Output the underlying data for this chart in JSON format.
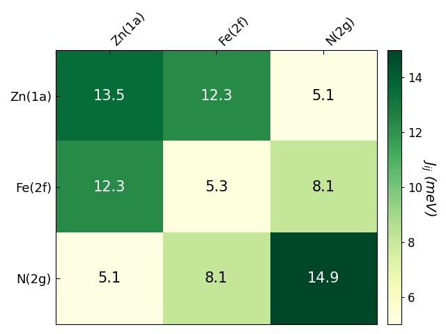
{
  "labels": [
    "Zn(1a)",
    "Fe(2f)",
    "N(2g)"
  ],
  "matrix": [
    [
      13.5,
      12.3,
      5.1
    ],
    [
      12.3,
      5.3,
      8.1
    ],
    [
      5.1,
      8.1,
      14.9
    ]
  ],
  "cmap": "YlGn",
  "vmin": 5.0,
  "vmax": 15.0,
  "colorbar_label": "$J_{ij}$ (meV)",
  "colorbar_ticks": [
    6,
    8,
    10,
    12,
    14
  ],
  "text_threshold": 9.0,
  "text_color_high": "white",
  "text_color_low": "black",
  "fontsize_values": 15,
  "fontsize_labels": 13,
  "fontsize_colorbar": 12,
  "figsize": [
    6.4,
    4.8
  ],
  "dpi": 100
}
